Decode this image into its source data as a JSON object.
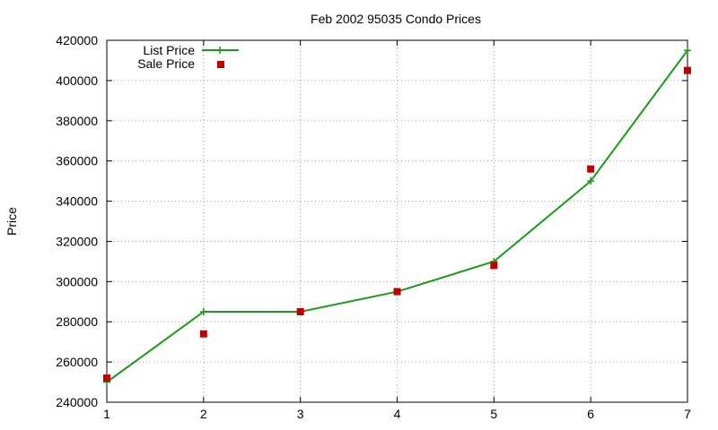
{
  "chart_data": {
    "type": "line",
    "title": "Feb 2002 95035 Condo Prices",
    "xlabel": "",
    "ylabel": "Price",
    "xlim": [
      1,
      7
    ],
    "ylim": [
      240000,
      420000
    ],
    "xticks": [
      "1",
      "2",
      "3",
      "4",
      "5",
      "6",
      "7"
    ],
    "yticks": [
      "240000",
      "260000",
      "280000",
      "300000",
      "320000",
      "340000",
      "360000",
      "380000",
      "400000",
      "420000"
    ],
    "grid": true,
    "legend_position": "top-left",
    "series": [
      {
        "name": "List Price",
        "style": "linespoints",
        "marker": "plus",
        "color": "#1a9a1a",
        "x": [
          1,
          2,
          3,
          4,
          5,
          6,
          7
        ],
        "y": [
          250000,
          285000,
          285000,
          295000,
          310000,
          350000,
          415000
        ]
      },
      {
        "name": "Sale Price",
        "style": "points",
        "marker": "square",
        "color": "#c00000",
        "x": [
          1,
          2,
          3,
          4,
          5,
          6,
          7
        ],
        "y": [
          252000,
          274000,
          285000,
          295000,
          308000,
          356000,
          405000
        ]
      }
    ]
  }
}
